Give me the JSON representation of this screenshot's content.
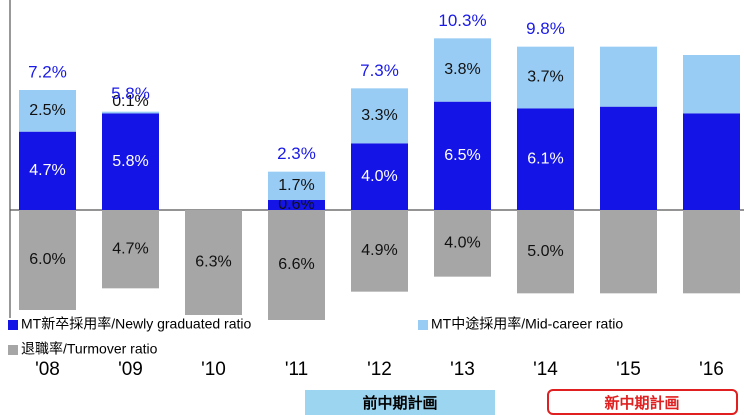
{
  "chart_data": {
    "type": "stacked_bar",
    "categories": [
      "'08",
      "'09",
      "'10",
      "'11",
      "'12",
      "'13",
      "'14",
      "'15",
      "'16"
    ],
    "series": [
      {
        "name": "MT新卒採用率/Newly graduated ratio",
        "color": "#1414e6",
        "values": [
          4.7,
          5.8,
          0,
          0.6,
          4.0,
          6.5,
          6.1,
          6.2,
          5.8
        ],
        "value_labels": [
          "4.7%",
          "5.8%",
          null,
          "0.6%",
          "4.0%",
          "6.5%",
          "6.1%",
          null,
          null
        ]
      },
      {
        "name": "MT中途採用率/Mid-career ratio",
        "color": "#99ccf5",
        "values": [
          2.5,
          0.1,
          0,
          1.7,
          3.3,
          3.8,
          3.7,
          3.6,
          3.5
        ],
        "value_labels": [
          "2.5%",
          "0.1%",
          null,
          "1.7%",
          "3.3%",
          "3.8%",
          "3.7%",
          null,
          null
        ]
      },
      {
        "name": "退職率/Turmover ratio",
        "color": "#a6a6a6",
        "values": [
          -6.0,
          -4.7,
          -6.3,
          -6.6,
          -4.9,
          -4.0,
          -5.0,
          -5.0,
          -5.0
        ],
        "value_labels": [
          "6.0%",
          "4.7%",
          "6.3%",
          "6.6%",
          "4.9%",
          "4.0%",
          "5.0%",
          null,
          null
        ]
      }
    ],
    "totals": {
      "color": "#1a1ae6",
      "values": [
        7.2,
        5.8,
        null,
        2.3,
        7.3,
        10.3,
        9.8,
        null,
        null
      ],
      "value_labels": [
        "7.2%",
        "5.8%",
        null,
        "2.3%",
        "7.3%",
        "10.3%",
        "9.8%",
        null,
        null
      ]
    },
    "ylim": [
      -7.2,
      12.6
    ]
  },
  "periods": [
    "前中期計画",
    "新中期計画"
  ]
}
